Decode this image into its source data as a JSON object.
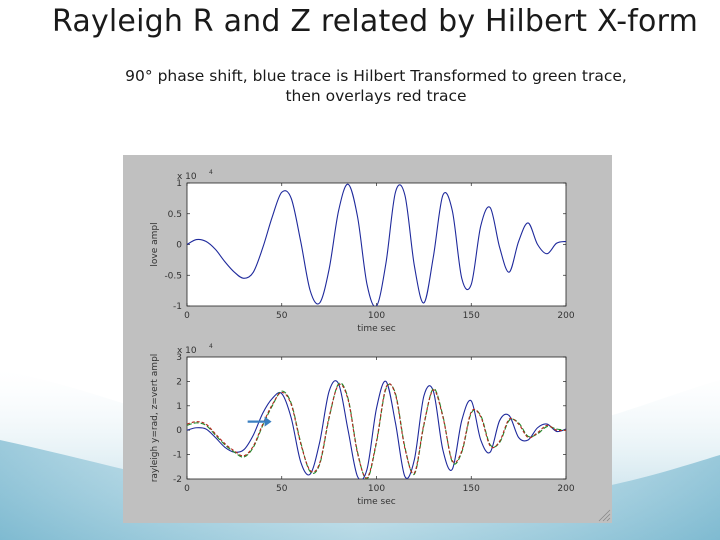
{
  "slide": {
    "title": "Rayleigh R and Z related by Hilbert X-form",
    "subtitle_line1": "90° phase shift, blue trace is Hilbert Transformed to green trace,",
    "subtitle_line2": "then overlays red trace"
  },
  "colors": {
    "blue": "#1f2a9c",
    "green": "#1e8a2a",
    "red": "#b3261e",
    "arrow": "#3a7fc0",
    "figure_bg": "#c0c0c0",
    "plot_bg": "#ffffff"
  },
  "chart_data": [
    {
      "type": "line",
      "title": "",
      "xlabel": "time sec",
      "ylabel": "love ampl",
      "exponent_label": "x 10",
      "exponent_power": "4",
      "xlim": [
        0,
        200
      ],
      "ylim": [
        -1,
        1
      ],
      "xticks": [
        "0",
        "50",
        "100",
        "150",
        "200"
      ],
      "yticks": [
        "1",
        "0.5",
        "0",
        "-0.5",
        "-1"
      ],
      "grid": false,
      "series": [
        {
          "color": "blue",
          "x": [
            0,
            5,
            10,
            15,
            20,
            25,
            30,
            35,
            40,
            45,
            50,
            55,
            60,
            65,
            70,
            75,
            80,
            85,
            90,
            95,
            100,
            105,
            110,
            115,
            120,
            125,
            130,
            135,
            140,
            145,
            150,
            155,
            160,
            165,
            170,
            175,
            180,
            185,
            190,
            195,
            200
          ],
          "y": [
            0.0,
            0.08,
            0.05,
            -0.08,
            -0.28,
            -0.45,
            -0.55,
            -0.45,
            -0.05,
            0.45,
            0.85,
            0.75,
            0.05,
            -0.75,
            -0.95,
            -0.4,
            0.55,
            0.98,
            0.45,
            -0.65,
            -1.0,
            -0.3,
            0.85,
            0.8,
            -0.35,
            -0.95,
            -0.2,
            0.8,
            0.55,
            -0.55,
            -0.65,
            0.3,
            0.6,
            -0.05,
            -0.45,
            0.05,
            0.35,
            0.0,
            -0.15,
            0.02,
            0.05
          ]
        }
      ]
    },
    {
      "type": "line",
      "title": "",
      "xlabel": "time sec",
      "ylabel": "rayleigh y=rad, z=vert ampl",
      "exponent_label": "x 10",
      "exponent_power": "4",
      "xlim": [
        0,
        200
      ],
      "ylim": [
        -2,
        3
      ],
      "xticks": [
        "0",
        "50",
        "100",
        "150",
        "200"
      ],
      "yticks": [
        "3",
        "2",
        "1",
        "0",
        "-1",
        "-2"
      ],
      "grid": false,
      "annotation": "arrow pointing at traces near t=45",
      "series": [
        {
          "color": "blue",
          "x": [
            0,
            5,
            10,
            15,
            20,
            25,
            30,
            35,
            40,
            45,
            50,
            55,
            60,
            65,
            70,
            75,
            80,
            85,
            90,
            95,
            100,
            105,
            110,
            115,
            120,
            125,
            130,
            135,
            140,
            145,
            150,
            155,
            160,
            165,
            170,
            175,
            180,
            185,
            190,
            195,
            200
          ],
          "y": [
            0.0,
            0.1,
            0.05,
            -0.3,
            -0.7,
            -0.9,
            -0.8,
            -0.2,
            0.7,
            1.3,
            1.5,
            0.5,
            -1.3,
            -1.8,
            -0.5,
            1.6,
            1.9,
            0.0,
            -1.9,
            -1.6,
            0.9,
            2.0,
            0.3,
            -1.9,
            -1.2,
            1.4,
            1.6,
            -0.8,
            -1.6,
            0.4,
            1.2,
            -0.4,
            -0.9,
            0.4,
            0.6,
            -0.3,
            -0.4,
            0.1,
            0.25,
            -0.05,
            0.05
          ]
        },
        {
          "color": "green",
          "x": [
            0,
            5,
            10,
            15,
            20,
            25,
            30,
            35,
            40,
            45,
            50,
            55,
            60,
            65,
            70,
            75,
            80,
            85,
            90,
            95,
            100,
            105,
            110,
            115,
            120,
            125,
            130,
            135,
            140,
            145,
            150,
            155,
            160,
            165,
            170,
            175,
            180,
            185,
            190,
            195,
            200
          ],
          "y": [
            0.2,
            0.3,
            0.2,
            -0.2,
            -0.6,
            -0.9,
            -1.1,
            -0.7,
            0.2,
            1.0,
            1.6,
            1.1,
            -0.5,
            -1.7,
            -1.4,
            0.5,
            1.9,
            1.3,
            -0.9,
            -2.0,
            -0.5,
            1.7,
            1.5,
            -0.7,
            -1.8,
            0.2,
            1.7,
            0.6,
            -1.3,
            -0.9,
            0.7,
            0.6,
            -0.6,
            -0.5,
            0.4,
            0.3,
            -0.25,
            -0.15,
            0.15,
            0.05,
            0.0
          ]
        },
        {
          "color": "red",
          "x": [
            0,
            5,
            10,
            15,
            20,
            25,
            30,
            35,
            40,
            45,
            50,
            55,
            60,
            65,
            70,
            75,
            80,
            85,
            90,
            95,
            100,
            105,
            110,
            115,
            120,
            125,
            130,
            135,
            140,
            145,
            150,
            155,
            160,
            165,
            170,
            175,
            180,
            185,
            190,
            195,
            200
          ],
          "y": [
            0.25,
            0.35,
            0.25,
            -0.15,
            -0.55,
            -0.85,
            -1.05,
            -0.65,
            0.25,
            1.05,
            1.55,
            1.05,
            -0.55,
            -1.65,
            -1.35,
            0.55,
            1.85,
            1.25,
            -0.95,
            -1.95,
            -0.45,
            1.75,
            1.45,
            -0.75,
            -1.75,
            0.25,
            1.65,
            0.55,
            -1.25,
            -0.85,
            0.75,
            0.55,
            -0.65,
            -0.45,
            0.45,
            0.25,
            -0.3,
            -0.1,
            0.2,
            0.0,
            0.0
          ]
        }
      ]
    }
  ]
}
